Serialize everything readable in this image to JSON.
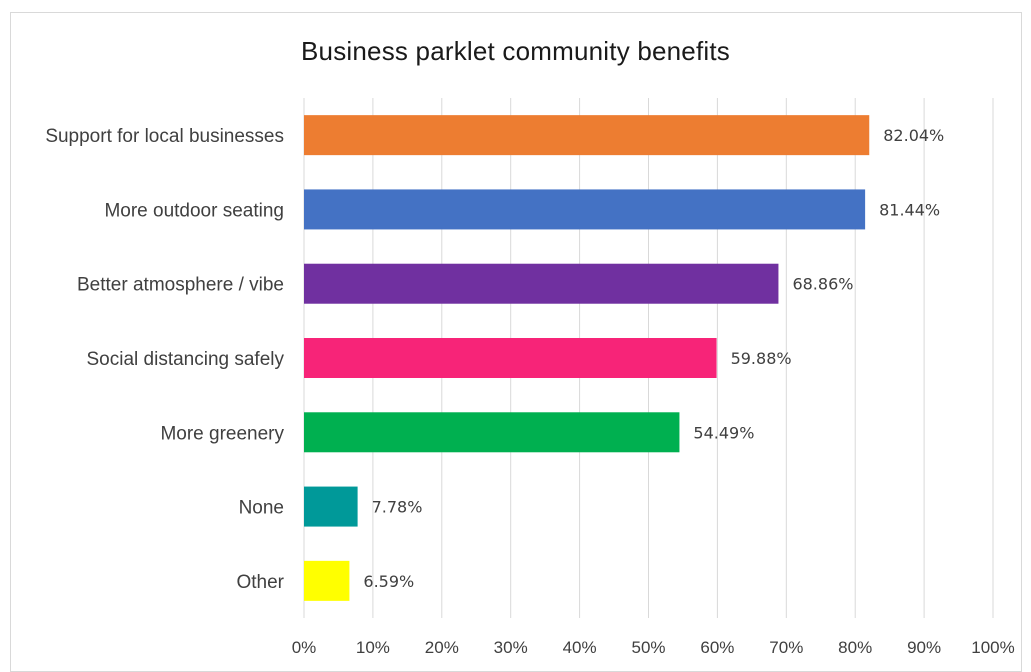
{
  "chart_data": {
    "type": "bar",
    "orientation": "horizontal",
    "title": "Business parklet community benefits",
    "categories": [
      "Support for local businesses",
      "More outdoor seating",
      "Better atmosphere / vibe",
      "Social distancing safely",
      "More greenery",
      "None",
      "Other"
    ],
    "values": [
      82.04,
      81.44,
      68.86,
      59.88,
      54.49,
      7.78,
      6.59
    ],
    "data_labels": [
      "82.04%",
      "81.44%",
      "68.86%",
      "59.88%",
      "54.49%",
      "7.78%",
      "6.59%"
    ],
    "colors": [
      "#ed7d31",
      "#4472c4",
      "#7030a0",
      "#f72478",
      "#00b050",
      "#009999",
      "#ffff00"
    ],
    "x_ticks": [
      "0%",
      "10%",
      "20%",
      "30%",
      "40%",
      "50%",
      "60%",
      "70%",
      "80%",
      "90%",
      "100%"
    ],
    "xlim": [
      0,
      100
    ],
    "grid": true,
    "legend": "none"
  }
}
